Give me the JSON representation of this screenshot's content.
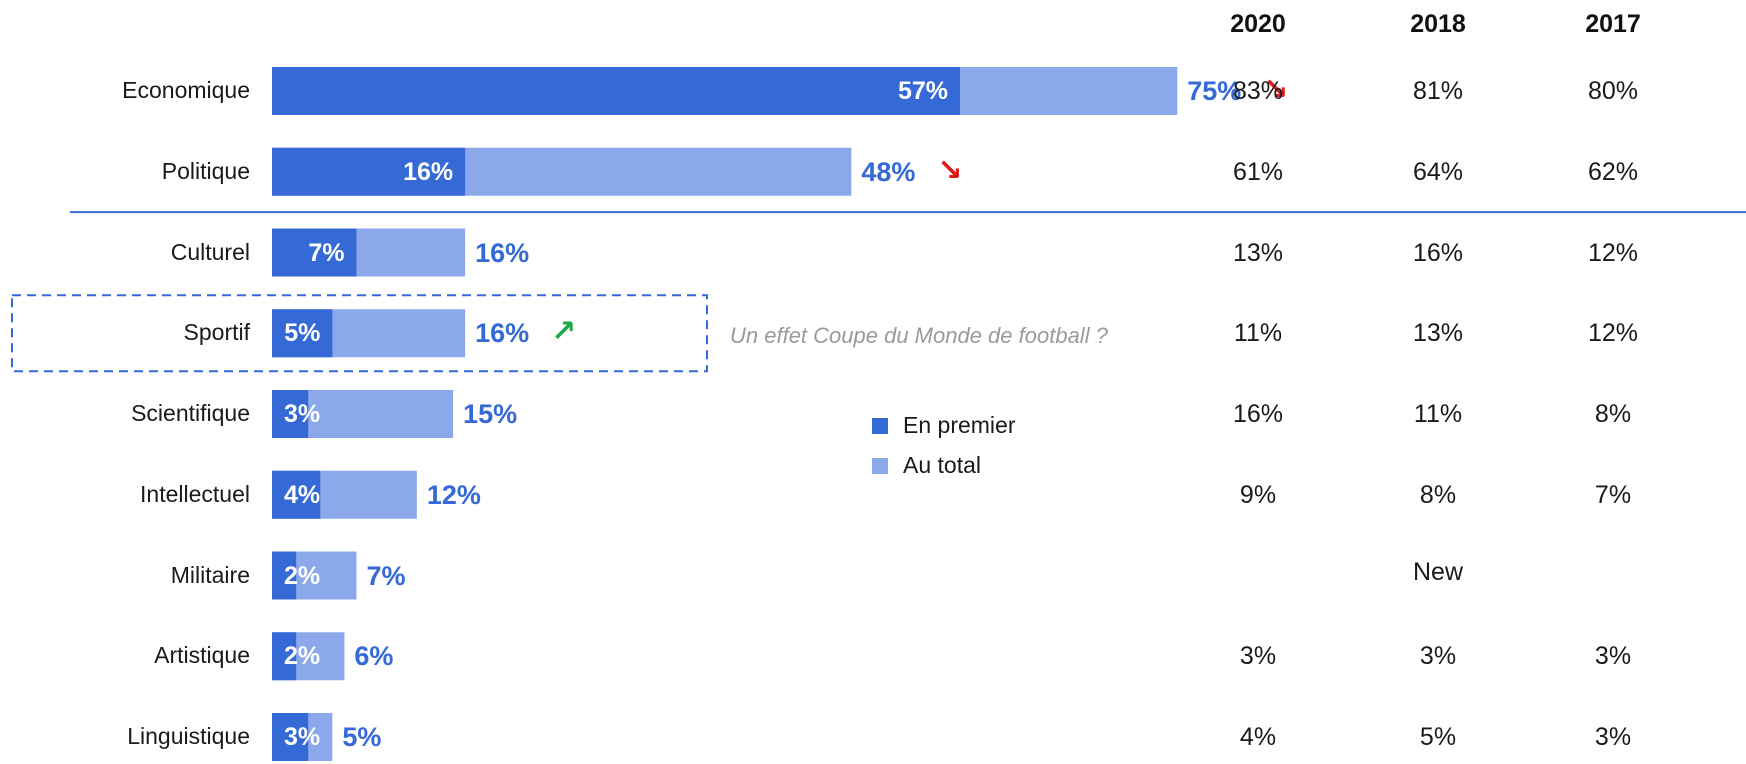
{
  "chart_data": {
    "type": "bar",
    "orientation": "horizontal",
    "stacked_overlay": true,
    "categories": [
      "Economique",
      "Politique",
      "Culturel",
      "Sportif",
      "Scientifique",
      "Intellectuel",
      "Militaire",
      "Artistique",
      "Linguistique"
    ],
    "series": [
      {
        "name": "En premier",
        "color": "#3469d6",
        "values": [
          57,
          16,
          7,
          5,
          3,
          4,
          2,
          2,
          3
        ]
      },
      {
        "name": "Au total",
        "color": "#8aa8ea",
        "values": [
          75,
          48,
          16,
          16,
          15,
          12,
          7,
          6,
          5
        ]
      }
    ],
    "labels_first": [
      "57%",
      "16%",
      "7%",
      "5%",
      "3%",
      "4%",
      "2%",
      "2%",
      "3%"
    ],
    "labels_total": [
      "75%",
      "48%",
      "16%",
      "16%",
      "15%",
      "12%",
      "7%",
      "6%",
      "5%"
    ],
    "trends": [
      {
        "category": "Economique",
        "direction": "down",
        "color": "#e01818",
        "glyph": "↘"
      },
      {
        "category": "Politique",
        "direction": "down",
        "color": "#e01818",
        "glyph": "↘"
      },
      {
        "category": "Sportif",
        "direction": "up",
        "color": "#1fa84a",
        "glyph": "↗"
      }
    ],
    "highlight": {
      "category": "Sportif",
      "style": "dashed-box",
      "color": "#3469d6"
    },
    "annotation": "Un effet Coupe du Monde de football ?",
    "separator_after": "Politique",
    "legend": {
      "placement": "center",
      "items": [
        "En premier",
        "Au total"
      ]
    },
    "xlim": [
      0,
      100
    ]
  },
  "history": {
    "years": [
      "2020",
      "2018",
      "2017"
    ],
    "rows": [
      [
        "83%",
        "81%",
        "80%"
      ],
      [
        "61%",
        "64%",
        "62%"
      ],
      [
        "13%",
        "16%",
        "12%"
      ],
      [
        "11%",
        "13%",
        "12%"
      ],
      [
        "16%",
        "11%",
        "8%"
      ],
      [
        "9%",
        "8%",
        "7%"
      ],
      [
        "",
        "New",
        ""
      ],
      [
        "3%",
        "3%",
        "3%"
      ],
      [
        "4%",
        "5%",
        "3%"
      ]
    ]
  }
}
